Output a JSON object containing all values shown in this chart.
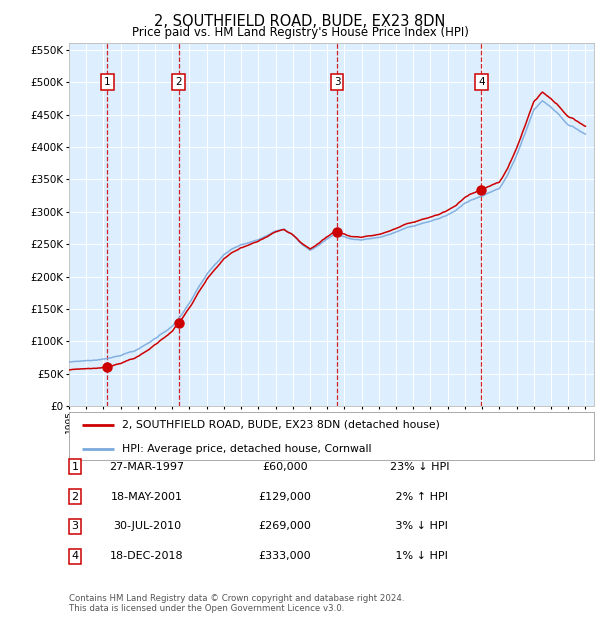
{
  "title": "2, SOUTHFIELD ROAD, BUDE, EX23 8DN",
  "subtitle": "Price paid vs. HM Land Registry's House Price Index (HPI)",
  "transactions": [
    {
      "num": 1,
      "date": "1997-03-27",
      "price": 60000,
      "pct": "23%",
      "dir": "↓"
    },
    {
      "num": 2,
      "date": "2001-05-18",
      "price": 129000,
      "pct": "2%",
      "dir": "↑"
    },
    {
      "num": 3,
      "date": "2010-07-30",
      "price": 269000,
      "pct": "3%",
      "dir": "↓"
    },
    {
      "num": 4,
      "date": "2018-12-18",
      "price": 333000,
      "pct": "1%",
      "dir": "↓"
    }
  ],
  "legend1": "2, SOUTHFIELD ROAD, BUDE, EX23 8DN (detached house)",
  "legend2": "HPI: Average price, detached house, Cornwall",
  "footer1": "Contains HM Land Registry data © Crown copyright and database right 2024.",
  "footer2": "This data is licensed under the Open Government Licence v3.0.",
  "hpi_color": "#7aaadd",
  "price_color": "#cc0000",
  "background_color": "#ddeeff",
  "ylim": [
    0,
    560000
  ],
  "yticks": [
    0,
    50000,
    100000,
    150000,
    200000,
    250000,
    300000,
    350000,
    400000,
    450000,
    500000,
    550000
  ],
  "xstart": 1995,
  "xend": 2025,
  "trans_years": [
    1997.236,
    2001.374,
    2010.578,
    2018.959
  ],
  "sale_prices": [
    60000,
    129000,
    269000,
    333000
  ],
  "hpi_anchors_x": [
    1995.0,
    1995.5,
    1996.0,
    1996.5,
    1997.0,
    1997.5,
    1998.0,
    1998.5,
    1999.0,
    1999.5,
    2000.0,
    2000.5,
    2001.0,
    2001.5,
    2002.0,
    2002.5,
    2003.0,
    2003.5,
    2004.0,
    2004.5,
    2005.0,
    2005.5,
    2006.0,
    2006.5,
    2007.0,
    2007.5,
    2008.0,
    2008.5,
    2009.0,
    2009.5,
    2010.0,
    2010.5,
    2011.0,
    2011.5,
    2012.0,
    2012.5,
    2013.0,
    2013.5,
    2014.0,
    2014.5,
    2015.0,
    2015.5,
    2016.0,
    2016.5,
    2017.0,
    2017.5,
    2018.0,
    2018.5,
    2019.0,
    2019.5,
    2020.0,
    2020.5,
    2021.0,
    2021.5,
    2022.0,
    2022.5,
    2023.0,
    2023.5,
    2024.0,
    2024.5,
    2025.0
  ],
  "hpi_anchors_y": [
    68000,
    69500,
    70500,
    71500,
    72500,
    76000,
    80000,
    84000,
    89000,
    96000,
    105000,
    115000,
    125000,
    140000,
    160000,
    182000,
    202000,
    218000,
    232000,
    241000,
    247000,
    250000,
    254000,
    262000,
    270000,
    274000,
    265000,
    250000,
    240000,
    248000,
    258000,
    265000,
    261000,
    257000,
    257000,
    259000,
    261000,
    264000,
    269000,
    274000,
    277000,
    281000,
    285000,
    289000,
    294000,
    301000,
    311000,
    319000,
    324000,
    330000,
    334000,
    356000,
    386000,
    420000,
    456000,
    470000,
    461000,
    449000,
    434000,
    427000,
    420000
  ]
}
